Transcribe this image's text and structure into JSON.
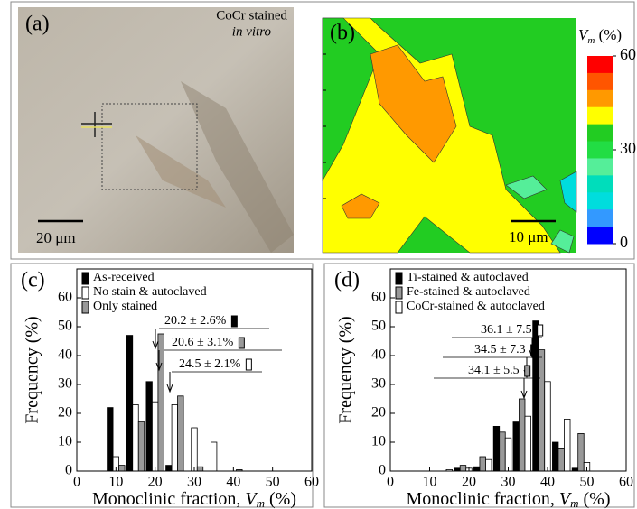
{
  "panel_a": {
    "label": "(a)",
    "caption_1": "CoCr stained",
    "caption_2": "in vitro",
    "scale": "20 μm"
  },
  "panel_b": {
    "label": "(b)",
    "colorbar_label": [
      "V",
      "m",
      " (%)"
    ],
    "colorbar_ticks": [
      0,
      30,
      60
    ],
    "colorbar_lim": [
      0,
      60
    ],
    "scale": "10 μm"
  },
  "chart_data": [
    {
      "type": "bar",
      "panel_label": "(c)",
      "x": [
        10,
        15,
        20,
        25,
        30,
        35,
        40
      ],
      "series": [
        {
          "name": "As-received",
          "color": "#000000",
          "values": [
            22,
            47,
            31,
            2,
            0,
            0,
            0
          ]
        },
        {
          "name": "No stain & autoclaved",
          "color": "#ffffff",
          "values": [
            5,
            23,
            24,
            23,
            15,
            10,
            0
          ]
        },
        {
          "name": "Only stained",
          "color": "#999999",
          "values": [
            2,
            17,
            47.5,
            26,
            1.5,
            0,
            0.5
          ]
        }
      ],
      "xlim": [
        0,
        60
      ],
      "xticks": [
        0,
        10,
        20,
        30,
        40,
        50,
        60
      ],
      "ylim": [
        0,
        70
      ],
      "yticks": [
        0,
        10,
        20,
        30,
        40,
        50,
        60
      ],
      "xlabel": [
        "Monoclinic fraction, ",
        "V",
        "m",
        " (%)"
      ],
      "ylabel": "Frequency (%)",
      "annotations": [
        "20.2 ± 2.6%",
        "20.6 ± 3.1%",
        "24.5 ± 2.1%"
      ]
    },
    {
      "type": "bar",
      "panel_label": "(d)",
      "x": [
        13.5,
        18.5,
        23.5,
        28.5,
        33.5,
        38.5,
        43.5,
        48.5
      ],
      "series": [
        {
          "name": "Ti-stained & autoclaved",
          "color": "#000000",
          "values": [
            0,
            1,
            1.5,
            15.5,
            17,
            52,
            10,
            1
          ]
        },
        {
          "name": "Fe-stained & autoclaved",
          "color": "#999999",
          "values": [
            0,
            2,
            5,
            13.5,
            25,
            42,
            8,
            13
          ]
        },
        {
          "name": "CoCr-stained & autoclaved",
          "color": "#ffffff",
          "values": [
            0.5,
            1,
            4,
            11.5,
            19,
            31,
            18,
            3
          ]
        }
      ],
      "xlim": [
        0,
        60
      ],
      "xticks": [
        0,
        10,
        20,
        30,
        40,
        50,
        60
      ],
      "ylim": [
        0,
        70
      ],
      "yticks": [
        0,
        10,
        20,
        30,
        40,
        50,
        60
      ],
      "xlabel": [
        "Monoclinic fraction, ",
        "V",
        "m",
        " (%)"
      ],
      "ylabel": "Frequency (%)",
      "annotations": [
        "36.1 ± 7.5",
        "34.5 ± 7.3",
        "34.1 ± 5.5"
      ]
    }
  ]
}
